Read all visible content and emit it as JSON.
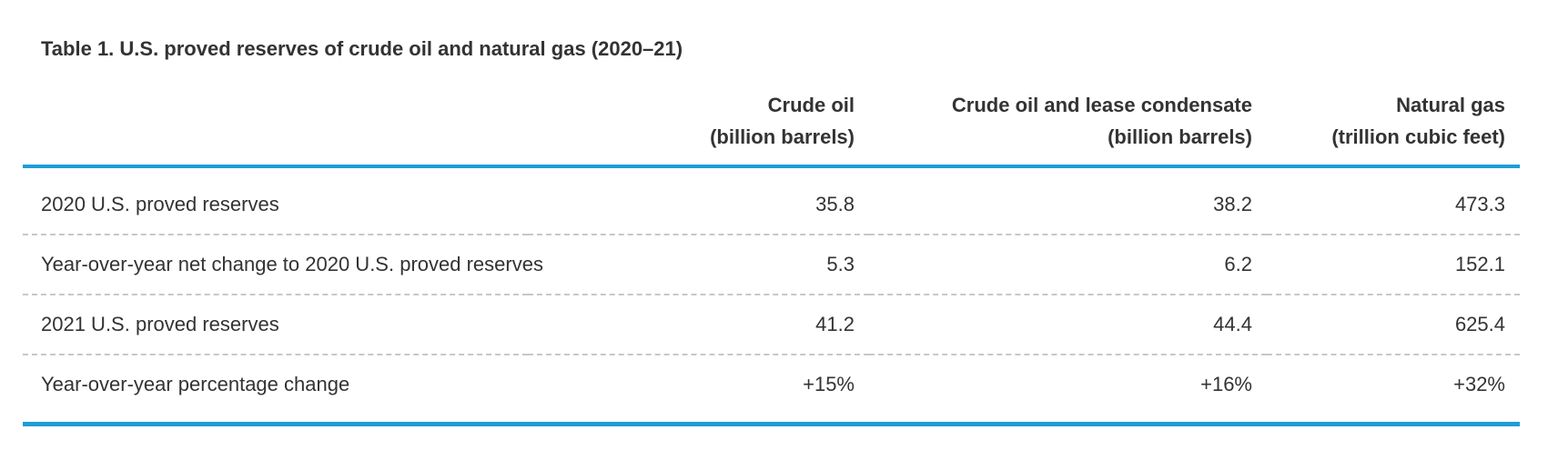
{
  "title": "Table 1. U.S. proved reserves of crude oil and natural gas (2020–21)",
  "colors": {
    "accent_blue": "#1e9cd7",
    "text": "#333333",
    "divider_gray": "#c8c8c8"
  },
  "chart_data": {
    "type": "table",
    "title": "Table 1. U.S. proved reserves of crude oil and natural gas (2020–21)",
    "columns": [
      {
        "line1": "Crude oil",
        "line2": "(billion barrels)"
      },
      {
        "line1": "Crude oil and lease condensate",
        "line2": "(billion barrels)"
      },
      {
        "line1": "Natural gas",
        "line2": "(trillion cubic feet)"
      }
    ],
    "rows": [
      {
        "label": "2020 U.S. proved reserves",
        "values": [
          "35.8",
          "38.2",
          "473.3"
        ]
      },
      {
        "label": "Year-over-year net change to 2020 U.S. proved reserves",
        "values": [
          "5.3",
          "6.2",
          "152.1"
        ]
      },
      {
        "label": "2021 U.S. proved reserves",
        "values": [
          "41.2",
          "44.4",
          "625.4"
        ]
      },
      {
        "label": "Year-over-year percentage change",
        "values": [
          "+15%",
          "+16%",
          "+32%"
        ]
      }
    ]
  }
}
